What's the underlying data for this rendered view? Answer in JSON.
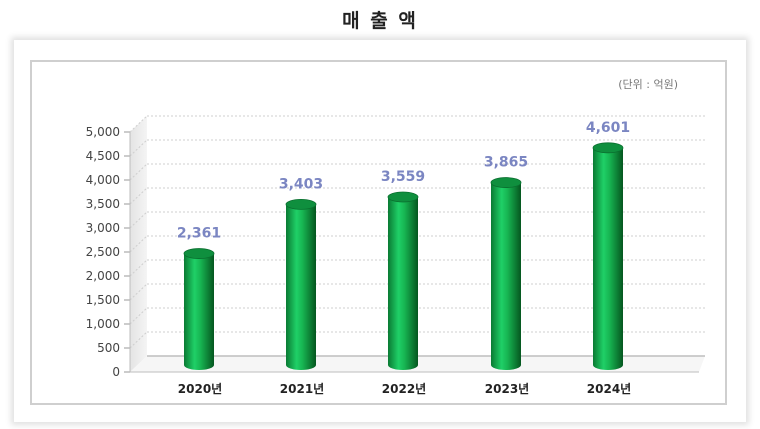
{
  "title": "매 출 액",
  "unit_label": "(단위 : 억원)",
  "chart_data": {
    "type": "bar",
    "categories": [
      "2020년",
      "2021년",
      "2022년",
      "2023년",
      "2024년"
    ],
    "values": [
      2361,
      3403,
      3559,
      3865,
      4601
    ],
    "value_labels": [
      "2,361",
      "3,403",
      "3,559",
      "3,865",
      "4,601"
    ],
    "yticks": [
      "0",
      "500",
      "1,000",
      "1,500",
      "2,000",
      "2,500",
      "3,000",
      "3,500",
      "4,000",
      "4,500",
      "5,000"
    ],
    "ylim": [
      0,
      5000
    ],
    "grid": true,
    "colors": {
      "bar": "#13a84a",
      "bar_dark": "#06702c",
      "bar_top": "#0f8f3e",
      "value_label": "#7b86c2",
      "axis": "#bdbdbd",
      "grid": "#cfcfcf"
    }
  }
}
